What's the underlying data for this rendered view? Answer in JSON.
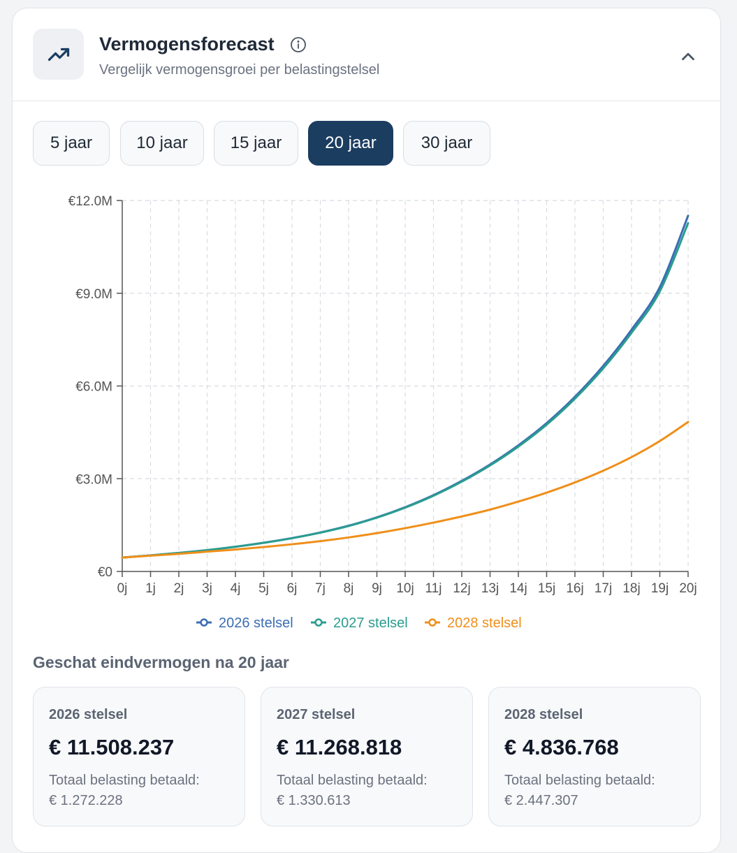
{
  "header": {
    "title": "Vermogensforecast",
    "subtitle": "Vergelijk vermogensgroei per belastingstelsel",
    "icon": "trending-up-icon",
    "info_icon": "info-icon",
    "collapse_icon": "chevron-up-icon"
  },
  "tabs": [
    {
      "label": "5 jaar",
      "active": false
    },
    {
      "label": "10 jaar",
      "active": false
    },
    {
      "label": "15 jaar",
      "active": false
    },
    {
      "label": "20 jaar",
      "active": true
    },
    {
      "label": "30 jaar",
      "active": false
    }
  ],
  "chart_data": {
    "type": "line",
    "x": [
      "0j",
      "1j",
      "2j",
      "3j",
      "4j",
      "5j",
      "6j",
      "7j",
      "8j",
      "9j",
      "10j",
      "11j",
      "12j",
      "13j",
      "14j",
      "15j",
      "16j",
      "17j",
      "18j",
      "19j",
      "20j"
    ],
    "yticks": [
      "€0",
      "€3.0M",
      "€6.0M",
      "€9.0M",
      "€12.0M"
    ],
    "ylim": [
      0,
      12000000
    ],
    "grid": true,
    "legend_position": "bottom",
    "series": [
      {
        "name": "2026 stelsel",
        "color": "#3b6db3",
        "values": [
          450000,
          520000,
          600000,
          690000,
          800000,
          930000,
          1080000,
          1260000,
          1480000,
          1750000,
          2080000,
          2470000,
          2930000,
          3460000,
          4080000,
          4800000,
          5650000,
          6650000,
          7820000,
          9200000,
          11508237
        ]
      },
      {
        "name": "2027 stelsel",
        "color": "#2a9d8f",
        "values": [
          450000,
          520000,
          600000,
          690000,
          800000,
          925000,
          1075000,
          1255000,
          1470000,
          1740000,
          2065000,
          2450000,
          2905000,
          3430000,
          4040000,
          4750000,
          5590000,
          6570000,
          7720000,
          9060000,
          11268818
        ]
      },
      {
        "name": "2028 stelsel",
        "color": "#ef8f1a",
        "values": [
          450000,
          510000,
          570000,
          640000,
          710000,
          790000,
          880000,
          980000,
          1100000,
          1240000,
          1400000,
          1580000,
          1780000,
          2000000,
          2260000,
          2550000,
          2880000,
          3260000,
          3700000,
          4220000,
          4836768
        ]
      }
    ]
  },
  "results": {
    "title": "Geschat eindvermogen na 20 jaar",
    "items": [
      {
        "name": "2026 stelsel",
        "value": "€ 11.508.237",
        "tax_label": "Totaal belasting betaald:",
        "tax_value": "€ 1.272.228"
      },
      {
        "name": "2027 stelsel",
        "value": "€ 11.268.818",
        "tax_label": "Totaal belasting betaald:",
        "tax_value": "€ 1.330.613"
      },
      {
        "name": "2028 stelsel",
        "value": "€ 4.836.768",
        "tax_label": "Totaal belasting betaald:",
        "tax_value": "€ 2.447.307"
      }
    ]
  }
}
